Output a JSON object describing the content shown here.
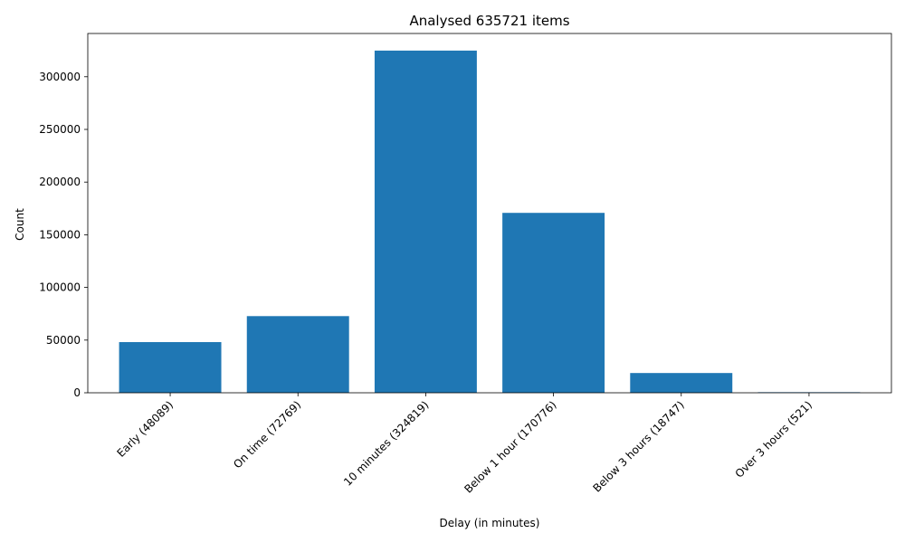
{
  "chart_data": {
    "type": "bar",
    "title": "Analysed 635721 items",
    "xlabel": "Delay (in minutes)",
    "ylabel": "Count",
    "categories": [
      "Early (48089)",
      "On time (72769)",
      "10 minutes (324819)",
      "Below 1 hour (170776)",
      "Below 3 hours (18747)",
      "Over 3 hours (521)"
    ],
    "values": [
      48089,
      72769,
      324819,
      170776,
      18747,
      521
    ],
    "ylim": [
      0,
      341060
    ],
    "yticks": [
      0,
      50000,
      100000,
      150000,
      200000,
      250000,
      300000
    ],
    "ytick_labels": [
      "0",
      "50000",
      "100000",
      "150000",
      "200000",
      "250000",
      "300000"
    ],
    "bar_color": "#1f77b4",
    "grid": false,
    "legend": "none"
  }
}
